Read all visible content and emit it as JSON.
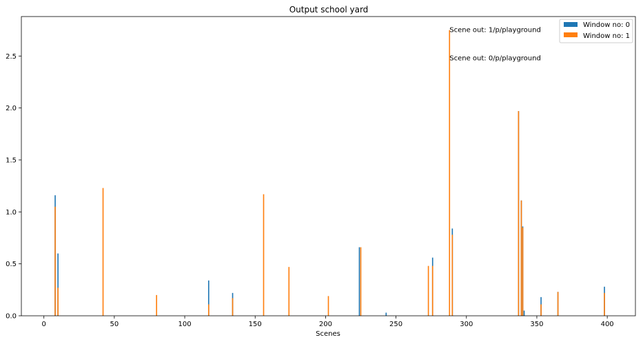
{
  "chart_data": {
    "type": "bar",
    "title": "Output school yard",
    "xlabel": "Scenes",
    "ylabel": "",
    "xlim": [
      -16,
      420
    ],
    "ylim": [
      0,
      2.88
    ],
    "x_ticks": [
      0,
      50,
      100,
      150,
      200,
      250,
      300,
      350,
      400
    ],
    "x_tick_labels": [
      "0",
      "50",
      "100",
      "150",
      "200",
      "250",
      "300",
      "350",
      "400"
    ],
    "y_ticks": [
      0.0,
      0.5,
      1.0,
      1.5,
      2.0,
      2.5
    ],
    "y_tick_labels": [
      "0.0",
      "0.5",
      "1.0",
      "1.5",
      "2.0",
      "2.5"
    ],
    "grid": false,
    "legend_position": "top-right",
    "series": [
      {
        "name": "Window no: 0",
        "color": "#1f77b4",
        "points": [
          {
            "x": 8,
            "y": 1.16
          },
          {
            "x": 10,
            "y": 0.6
          },
          {
            "x": 117,
            "y": 0.34
          },
          {
            "x": 134,
            "y": 0.22
          },
          {
            "x": 224,
            "y": 0.66
          },
          {
            "x": 243,
            "y": 0.03
          },
          {
            "x": 276,
            "y": 0.56
          },
          {
            "x": 290,
            "y": 0.84
          },
          {
            "x": 337,
            "y": 1.97
          },
          {
            "x": 339,
            "y": 1.11
          },
          {
            "x": 340,
            "y": 0.86
          },
          {
            "x": 341,
            "y": 0.05
          },
          {
            "x": 353,
            "y": 0.18
          },
          {
            "x": 365,
            "y": 0.23
          },
          {
            "x": 398,
            "y": 0.28
          }
        ]
      },
      {
        "name": "Window no: 1",
        "color": "#ff7f0e",
        "points": [
          {
            "x": 8,
            "y": 1.05
          },
          {
            "x": 10,
            "y": 0.27
          },
          {
            "x": 42,
            "y": 1.23
          },
          {
            "x": 80,
            "y": 0.2
          },
          {
            "x": 117,
            "y": 0.11
          },
          {
            "x": 134,
            "y": 0.17
          },
          {
            "x": 156,
            "y": 1.17
          },
          {
            "x": 174,
            "y": 0.47
          },
          {
            "x": 202,
            "y": 0.19
          },
          {
            "x": 225,
            "y": 0.66
          },
          {
            "x": 273,
            "y": 0.48
          },
          {
            "x": 276,
            "y": 0.48
          },
          {
            "x": 288,
            "y": 2.75
          },
          {
            "x": 290,
            "y": 0.78
          },
          {
            "x": 337,
            "y": 1.97
          },
          {
            "x": 339,
            "y": 1.11
          },
          {
            "x": 340,
            "y": 0.85
          },
          {
            "x": 353,
            "y": 0.11
          },
          {
            "x": 365,
            "y": 0.23
          },
          {
            "x": 398,
            "y": 0.22
          }
        ]
      }
    ],
    "annotations": [
      {
        "text": "Scene out: 1/p/playground",
        "x": 288,
        "y": 2.75
      },
      {
        "text": "Scene out: 0/p/playground",
        "x": 288,
        "y": 2.48
      }
    ]
  }
}
